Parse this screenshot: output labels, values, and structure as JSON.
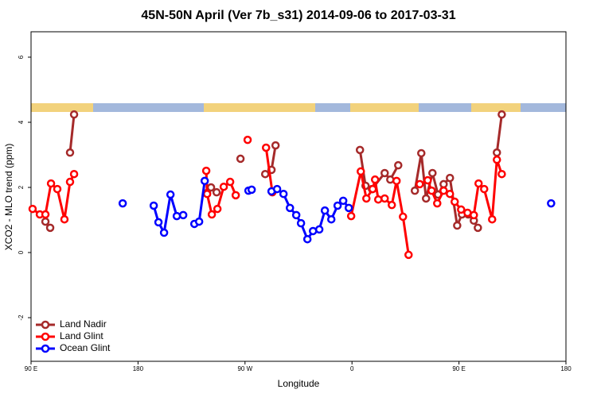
{
  "chart_data": {
    "type": "line",
    "title": "45N-50N April (Ver 7b_s31)   2014-09-06 to 2017-03-31",
    "x_label": "Longitude",
    "y_label": "XCO2 - MLO trend (ppm)",
    "xlim": [
      90,
      540
    ],
    "ylim": [
      -3.34,
      6.78
    ],
    "xticks": [
      {
        "value": 90,
        "label": "90 E"
      },
      180,
      {
        "value": 270,
        "label": "90 W"
      },
      {
        "value": 360,
        "label": "0"
      },
      {
        "value": 450,
        "label": "90 E"
      },
      {
        "value": 540,
        "label": "180"
      }
    ],
    "yticks": [
      -2,
      0,
      2,
      4,
      6
    ],
    "legend": "bottomleft",
    "series": [
      {
        "name": "Land Nadir",
        "color": "#a52a2a",
        "x": [
          102.1,
          106.1,
          null,
          122.8,
          126.2,
          null,
          238.1,
          241.4,
          246.1,
          null,
          266.2,
          null,
          287.0,
          292.3,
          295.7,
          null,
          366.7,
          371.4,
          376.8,
          387.5,
          392.2,
          398.9,
          null,
          412.9,
          418.3,
          422.3,
          427.7,
          432.4,
          437.1,
          442.4,
          448.5,
          452.5,
          457.8,
          462.5,
          465.9,
          null,
          481.9,
          486.0
        ],
        "values": [
          0.95,
          0.76,
          null,
          3.07,
          4.24,
          null,
          1.83,
          2.0,
          1.85,
          null,
          2.88,
          null,
          2.41,
          2.54,
          3.29,
          null,
          3.15,
          2.05,
          1.95,
          2.44,
          2.24,
          2.68,
          null,
          1.9,
          3.05,
          1.66,
          2.44,
          1.78,
          2.1,
          2.29,
          0.83,
          1.17,
          1.17,
          0.98,
          0.76,
          null,
          3.07,
          4.24
        ]
      },
      {
        "name": "Land Glint",
        "color": "#ff0000",
        "x": [
          91.3,
          97.4,
          102.1,
          106.8,
          112.1,
          118.1,
          122.8,
          126.2,
          null,
          237.4,
          238.1,
          242.1,
          246.8,
          252.1,
          257.5,
          262.2,
          null,
          272.2,
          null,
          287.7,
          293.0,
          null,
          359.3,
          367.4,
          372.1,
          377.4,
          379.4,
          382.1,
          387.5,
          393.5,
          397.5,
          402.9,
          407.6,
          null,
          417.0,
          423.7,
          427.0,
          431.7,
          437.1,
          442.4,
          446.4,
          451.8,
          457.2,
          462.5,
          466.5,
          471.2,
          477.9,
          481.9,
          486.0
        ],
        "values": [
          1.34,
          1.17,
          1.17,
          2.12,
          1.95,
          1.02,
          2.17,
          2.41,
          null,
          2.51,
          1.8,
          1.17,
          1.34,
          2.02,
          2.17,
          1.76,
          null,
          3.46,
          null,
          3.22,
          1.85,
          null,
          1.12,
          2.49,
          1.66,
          1.95,
          2.24,
          1.63,
          1.66,
          1.46,
          2.2,
          1.1,
          -0.07,
          null,
          2.1,
          2.22,
          1.9,
          1.51,
          1.9,
          1.8,
          1.56,
          1.32,
          1.22,
          1.15,
          2.12,
          1.95,
          1.02,
          2.85,
          2.41
        ]
      },
      {
        "name": "Ocean Glint",
        "color": "#0000ff",
        "x": [
          167.1,
          null,
          193.2,
          197.2,
          201.9,
          207.3,
          212.6,
          218.0,
          null,
          227.4,
          231.4,
          236.1,
          null,
          272.9,
          275.6,
          null,
          292.3,
          297.0,
          302.4,
          307.8,
          313.1,
          317.1,
          322.5,
          327.2,
          332.5,
          337.2,
          342.6,
          347.9,
          352.6,
          357.3,
          null,
          527.5
        ],
        "values": [
          1.51,
          null,
          1.44,
          0.93,
          0.61,
          1.78,
          1.12,
          1.15,
          null,
          0.88,
          0.95,
          2.2,
          null,
          1.9,
          1.93,
          null,
          1.88,
          1.95,
          1.8,
          1.37,
          1.15,
          0.9,
          0.41,
          0.66,
          0.71,
          1.29,
          1.02,
          1.44,
          1.59,
          1.37,
          null,
          1.51
        ]
      }
    ]
  }
}
